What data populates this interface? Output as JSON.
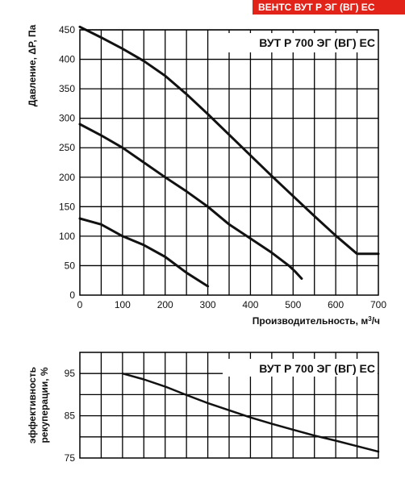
{
  "header_badge": {
    "label": "ВЕНТС ВУТ Р ЭГ (ВГ) ЕС",
    "color": "#e2231a"
  },
  "chart_data": [
    {
      "type": "line",
      "title": "ВУТ Р 700 ЭГ (ВГ) ЕС",
      "xlabel": "Производительность, м³/ч",
      "ylabel": "Давление, ΔP, Па",
      "xlim": [
        0,
        700
      ],
      "ylim": [
        0,
        450
      ],
      "x_ticks": [
        0,
        100,
        200,
        300,
        400,
        500,
        600,
        700
      ],
      "y_ticks": [
        0,
        50,
        100,
        150,
        200,
        250,
        300,
        350,
        400,
        450
      ],
      "grid": true,
      "series": [
        {
          "x": [
            0,
            50,
            100,
            150,
            200,
            250,
            300,
            350,
            400,
            450,
            500,
            550,
            600,
            650,
            700
          ],
          "y": [
            455,
            437,
            418,
            397,
            372,
            341,
            307,
            272,
            237,
            202,
            168,
            134,
            101,
            70,
            70
          ]
        },
        {
          "x": [
            0,
            50,
            100,
            150,
            200,
            250,
            300,
            350,
            400,
            450,
            490,
            505,
            520
          ],
          "y": [
            290,
            271,
            250,
            225,
            200,
            176,
            150,
            120,
            96,
            72,
            50,
            40,
            28
          ]
        },
        {
          "x": [
            0,
            20,
            50,
            100,
            150,
            200,
            250,
            300
          ],
          "y": [
            130,
            126,
            120,
            100,
            85,
            65,
            38,
            15
          ]
        }
      ]
    },
    {
      "type": "line",
      "title": "ВУТ Р 700 ЭГ (ВГ) ЕС",
      "xlabel": "",
      "ylabel": "эффективность рекуперации, %",
      "xlim": [
        0,
        700
      ],
      "ylim": [
        75,
        100
      ],
      "y_ticks": [
        75,
        85,
        95
      ],
      "grid": true,
      "series": [
        {
          "x": [
            100,
            150,
            200,
            250,
            300,
            350,
            400,
            450,
            500,
            550,
            600,
            650,
            700
          ],
          "y": [
            95,
            93.6,
            91.9,
            89.9,
            88,
            86.3,
            84.6,
            83.1,
            81.7,
            80.3,
            79.1,
            77.8,
            76.5
          ]
        }
      ]
    }
  ]
}
